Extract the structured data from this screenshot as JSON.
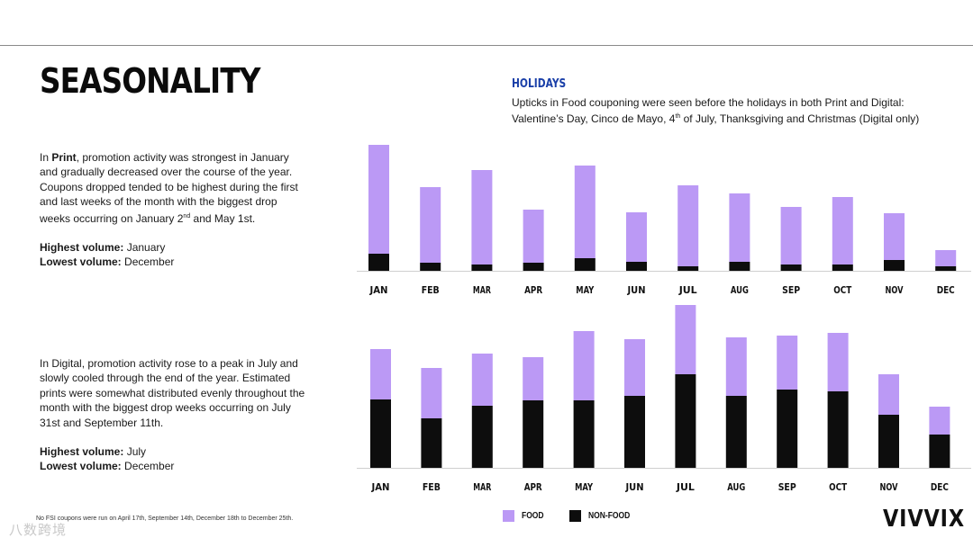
{
  "title": "SEASONALITY",
  "print_text": {
    "intro": "In ",
    "bold_word": "Print",
    "rest_1": ", promotion activity was strongest in January and gradually decreased over the course of the year. Coupons dropped tended to be highest during the first and last weeks of the month with the biggest drop weeks occurring on January 2",
    "sup_1": "nd",
    "rest_2": " and May 1st.",
    "highest_label": "Highest volume:",
    "highest_value": " January",
    "lowest_label": "Lowest volume:",
    "lowest_value": " December"
  },
  "digital_text": {
    "body": "In Digital, promotion activity rose to a peak in July and slowly cooled through the end of the year. Estimated prints were somewhat distributed evenly throughout the month with the biggest drop weeks occurring on July 31st and September 11th.",
    "highest_label": "Highest volume:",
    "highest_value": " July",
    "lowest_label": "Lowest volume:",
    "lowest_value": " December"
  },
  "holidays": {
    "heading": "HOLIDAYS",
    "line_1": "Upticks in Food couponing were seen before the holidays in both Print and Digital:",
    "line_2_a": "Valentine’s Day, Cinco de Mayo, 4",
    "line_2_sup": "th",
    "line_2_b": " of July, Thanksgiving and Christmas (Digital only)"
  },
  "footnote": "No FSI coupons were run on April 17th, September 14th, December 18th to December 25th.",
  "watermark": "八数跨境",
  "legend": {
    "food": "FOOD",
    "non_food": "NON-FOOD"
  },
  "logo": "VIVVIX",
  "colors": {
    "food": "#bb99f5",
    "non_food": "#0d0d0d",
    "axis": "#cfcfcf",
    "holidays": "#1a3fa8"
  },
  "chart_data": [
    {
      "type": "bar",
      "stacked": true,
      "name": "Print",
      "categories": [
        "JAN",
        "FEB",
        "MAR",
        "APR",
        "MAY",
        "JUN",
        "JUL",
        "AUG",
        "SEP",
        "OCT",
        "NOV",
        "DEC"
      ],
      "series": [
        {
          "name": "NON-FOOD",
          "values": [
            19,
            9,
            7,
            9,
            14,
            10,
            5,
            10,
            7,
            7,
            12,
            5
          ]
        },
        {
          "name": "FOOD",
          "values": [
            121,
            84,
            105,
            59,
            103,
            55,
            90,
            76,
            64,
            75,
            52,
            18
          ]
        }
      ],
      "ylim": [
        0,
        145
      ],
      "grid": false,
      "legend": "bottom"
    },
    {
      "type": "bar",
      "stacked": true,
      "name": "Digital",
      "categories": [
        "JAN",
        "FEB",
        "MAR",
        "APR",
        "MAY",
        "JUN",
        "JUL",
        "AUG",
        "SEP",
        "OCT",
        "NOV",
        "DEC"
      ],
      "series": [
        {
          "name": "NON-FOOD",
          "values": [
            76,
            55,
            69,
            75,
            75,
            80,
            104,
            80,
            87,
            85,
            59,
            37
          ]
        },
        {
          "name": "FOOD",
          "values": [
            56,
            56,
            58,
            48,
            77,
            63,
            77,
            65,
            60,
            65,
            45,
            31
          ]
        }
      ],
      "ylim": [
        0,
        185
      ],
      "grid": false,
      "legend": "bottom"
    }
  ]
}
